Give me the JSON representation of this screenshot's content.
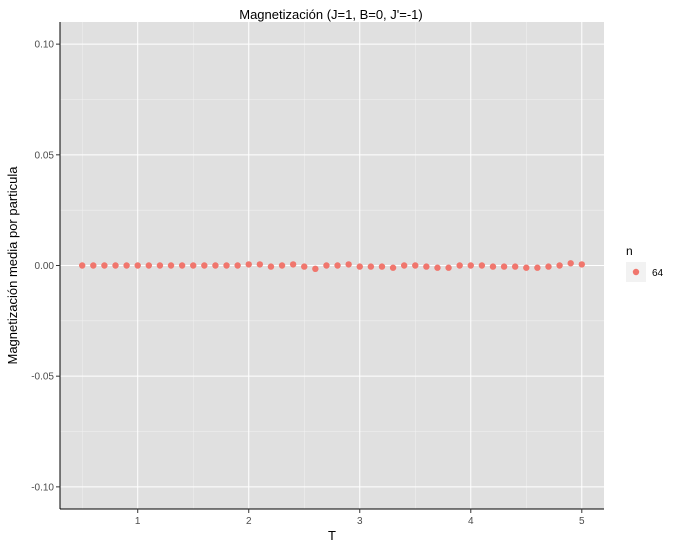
{
  "chart_data": {
    "type": "scatter",
    "title": "Magnetización (J=1, B=0, J'=-1)",
    "xlabel": "T",
    "ylabel": "Magnetización media por particula",
    "xlim": [
      0.3,
      5.2
    ],
    "ylim": [
      -0.11,
      0.11
    ],
    "x_ticks": [
      1,
      2,
      3,
      4,
      5
    ],
    "x_tick_labels": [
      "1",
      "2",
      "3",
      "4",
      "5"
    ],
    "y_ticks": [
      -0.1,
      -0.05,
      0.0,
      0.05,
      0.1
    ],
    "y_tick_labels": [
      "-0.10",
      "-0.05",
      "0.00",
      "0.05",
      "0.10"
    ],
    "grid": true,
    "legend": {
      "title": "n",
      "position": "right",
      "entries": [
        "64"
      ]
    },
    "series": [
      {
        "name": "64",
        "color": "#f0766d",
        "x": [
          0.5,
          0.6,
          0.7,
          0.8,
          0.9,
          1.0,
          1.1,
          1.2,
          1.3,
          1.4,
          1.5,
          1.6,
          1.7,
          1.8,
          1.9,
          2.0,
          2.1,
          2.2,
          2.3,
          2.4,
          2.5,
          2.6,
          2.7,
          2.8,
          2.9,
          3.0,
          3.1,
          3.2,
          3.3,
          3.4,
          3.5,
          3.6,
          3.7,
          3.8,
          3.9,
          4.0,
          4.1,
          4.2,
          4.3,
          4.4,
          4.5,
          4.6,
          4.7,
          4.8,
          4.9,
          5.0
        ],
        "y": [
          0.0,
          0.0,
          0.0,
          0.0,
          0.0,
          0.0,
          0.0,
          0.0,
          0.0,
          0.0,
          0.0,
          0.0,
          0.0,
          0.0,
          0.0,
          0.0005,
          0.0005,
          -0.0005,
          0.0,
          0.0005,
          -0.0005,
          -0.0015,
          0.0,
          0.0,
          0.0005,
          -0.0005,
          -0.0005,
          -0.0005,
          -0.001,
          0.0,
          0.0,
          -0.0005,
          -0.001,
          -0.001,
          0.0,
          0.0,
          0.0,
          -0.0005,
          -0.0005,
          -0.0005,
          -0.001,
          -0.001,
          -0.0005,
          0.0,
          0.001,
          0.0005
        ]
      }
    ]
  }
}
